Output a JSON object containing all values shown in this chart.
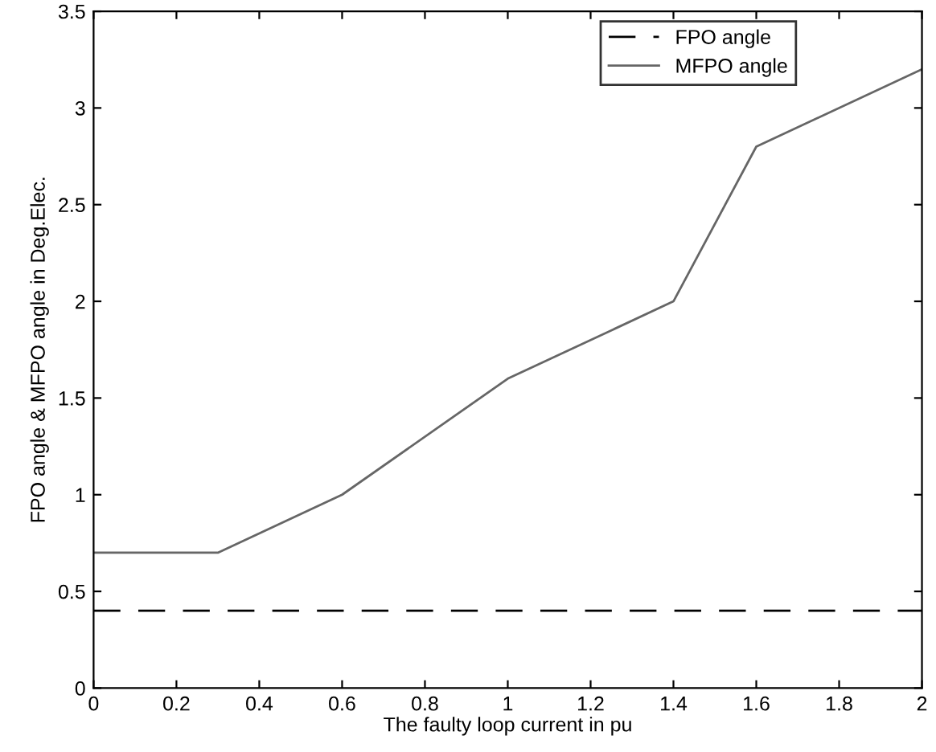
{
  "chart_data": {
    "type": "line",
    "xlabel": "The faulty loop current in pu",
    "ylabel": "FPO angle & MFPO angle in Deg.Elec.",
    "xlim": [
      0,
      2
    ],
    "xticks": [
      0,
      0.2,
      0.4,
      0.6,
      0.8,
      1,
      1.2,
      1.4,
      1.6,
      1.8,
      2
    ],
    "ylim": [
      0,
      3.5
    ],
    "yticks": [
      0,
      0.5,
      1,
      1.5,
      2,
      2.5,
      3,
      3.5
    ],
    "legend": "top right",
    "series": [
      {
        "name": "FPO angle",
        "color": "#000000",
        "line_style": "dashed",
        "x": [
          0,
          2
        ],
        "values": [
          0.4,
          0.4
        ]
      },
      {
        "name": "MFPO angle",
        "color": "#666666",
        "line_style": "solid",
        "x": [
          0,
          0.3,
          0.6,
          1.0,
          1.4,
          1.6,
          2.0
        ],
        "values": [
          0.7,
          0.7,
          1.0,
          1.6,
          2.0,
          2.8,
          3.2
        ]
      }
    ]
  }
}
